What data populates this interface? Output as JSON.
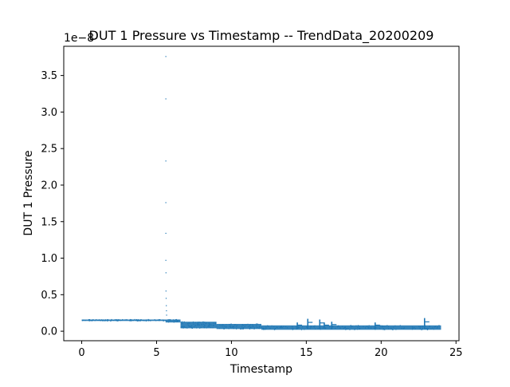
{
  "chart_data": {
    "type": "scatter",
    "title": "DUT 1 Pressure vs Timestamp -- TrendData_20200209",
    "xlabel": "Timestamp",
    "ylabel": "DUT 1 Pressure",
    "y_offset_text": "1e−8",
    "y_scale_exponent": -8,
    "xlim": [
      -1.2,
      25.2
    ],
    "ylim": [
      -0.13,
      3.9
    ],
    "x_ticks": [
      0,
      5,
      10,
      15,
      20,
      25
    ],
    "x_tick_labels": [
      "0",
      "5",
      "10",
      "15",
      "20",
      "25"
    ],
    "y_ticks": [
      0.0,
      0.5,
      1.0,
      1.5,
      2.0,
      2.5,
      3.0,
      3.5
    ],
    "y_tick_labels": [
      "0.0",
      "0.5",
      "1.0",
      "1.5",
      "2.0",
      "2.5",
      "3.0",
      "3.5"
    ],
    "grid": false,
    "marker_color": "#1f77b4",
    "series": [
      {
        "name": "DUT 1 Pressure",
        "segments": [
          {
            "x_start": 0.0,
            "x_end": 5.6,
            "y_low": 0.14,
            "y_high": 0.16,
            "count": 110
          },
          {
            "x_start": 5.6,
            "x_end": 6.6,
            "y_low": 0.12,
            "y_high": 0.16,
            "count": 20
          },
          {
            "x_start": 6.6,
            "x_end": 9.0,
            "y_low": 0.04,
            "y_high": 0.13,
            "count": 80
          },
          {
            "x_start": 9.0,
            "x_end": 12.0,
            "y_low": 0.03,
            "y_high": 0.1,
            "count": 70
          },
          {
            "x_start": 12.0,
            "x_end": 24.0,
            "y_low": 0.02,
            "y_high": 0.08,
            "count": 160
          }
        ],
        "spike": [
          {
            "x": 5.62,
            "y": 3.76
          },
          {
            "x": 5.62,
            "y": 3.18
          },
          {
            "x": 5.62,
            "y": 2.33
          },
          {
            "x": 5.62,
            "y": 1.76
          },
          {
            "x": 5.62,
            "y": 1.34
          },
          {
            "x": 5.62,
            "y": 0.97
          },
          {
            "x": 5.63,
            "y": 0.8
          },
          {
            "x": 5.63,
            "y": 0.55
          },
          {
            "x": 5.64,
            "y": 0.45
          },
          {
            "x": 5.65,
            "y": 0.35
          },
          {
            "x": 5.66,
            "y": 0.28
          },
          {
            "x": 5.67,
            "y": 0.22
          }
        ],
        "bursts": [
          {
            "x": 14.4,
            "y_low": 0.03,
            "y_high": 0.12
          },
          {
            "x": 15.1,
            "y_low": 0.03,
            "y_high": 0.17
          },
          {
            "x": 15.9,
            "y_low": 0.03,
            "y_high": 0.16
          },
          {
            "x": 16.2,
            "y_low": 0.04,
            "y_high": 0.12
          },
          {
            "x": 16.7,
            "y_low": 0.03,
            "y_high": 0.13
          },
          {
            "x": 19.6,
            "y_low": 0.02,
            "y_high": 0.12
          },
          {
            "x": 22.9,
            "y_low": 0.03,
            "y_high": 0.18
          }
        ]
      }
    ]
  }
}
